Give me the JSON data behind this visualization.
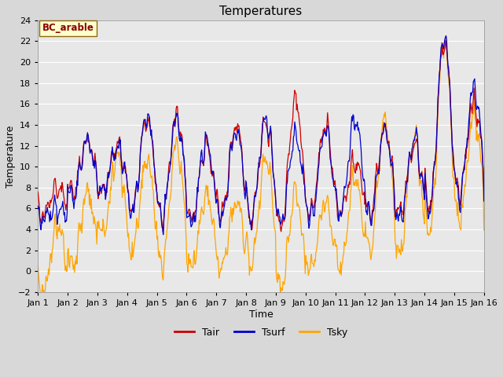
{
  "title": "Temperatures",
  "xlabel": "Time",
  "ylabel": "Temperature",
  "dataset_label": "BC_arable",
  "ylim": [
    -2,
    24
  ],
  "yticks": [
    -2,
    0,
    2,
    4,
    6,
    8,
    10,
    12,
    14,
    16,
    18,
    20,
    22,
    24
  ],
  "n_days": 15,
  "xtick_labels": [
    "Jan 1",
    "Jan 2",
    "Jan 3",
    "Jan 4",
    "Jan 5",
    "Jan 6",
    "Jan 7",
    "Jan 8",
    "Jan 9",
    "Jan 10",
    "Jan 11",
    "Jan 12",
    "Jan 13",
    "Jan 14",
    "Jan 15",
    "Jan 16"
  ],
  "line_colors": {
    "Tair": "#cc0000",
    "Tsurf": "#0000cc",
    "Tsky": "#ffa500"
  },
  "bg_color": "#e8e8e8",
  "grid_color": "#ffffff",
  "fig_facecolor": "#d8d8d8",
  "title_fontsize": 11,
  "axis_fontsize": 9,
  "tick_fontsize": 8,
  "legend_fontsize": 9
}
